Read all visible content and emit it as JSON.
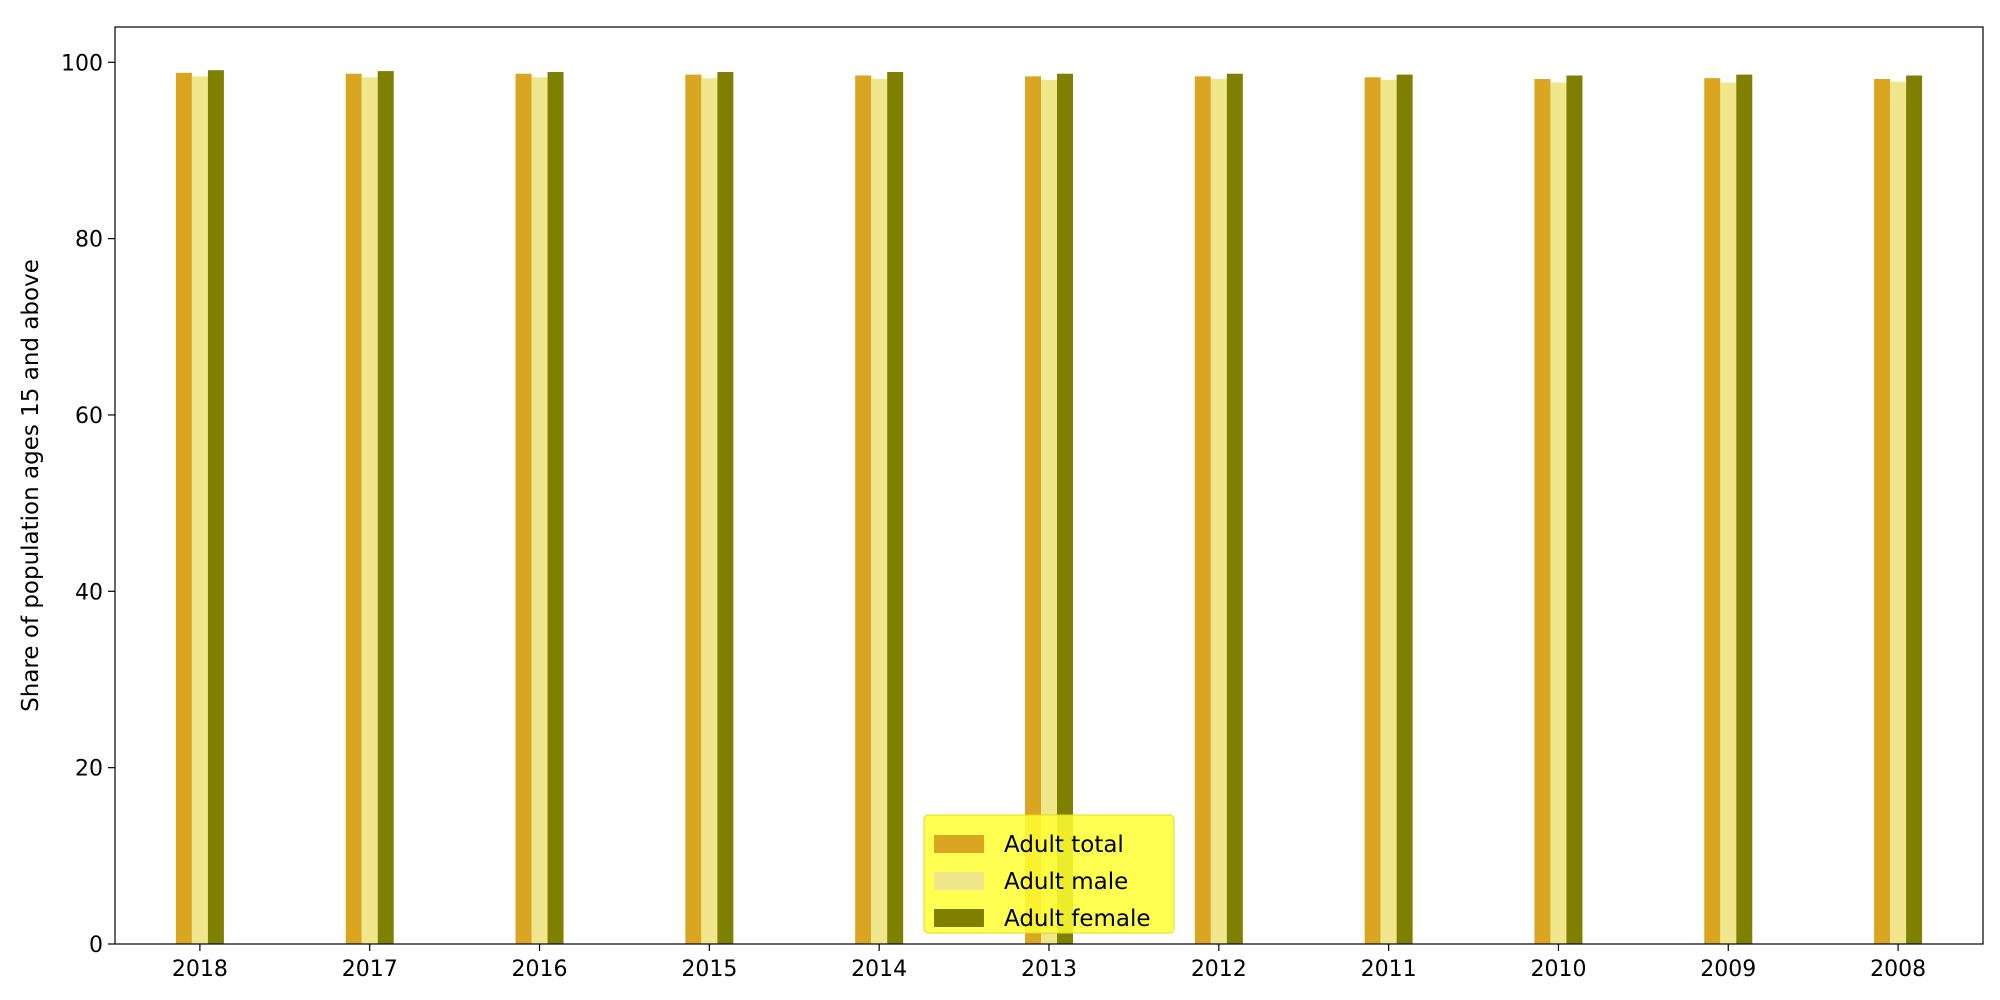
{
  "chart_data": {
    "type": "bar",
    "title": "",
    "xlabel": "",
    "ylabel": "Share of population ages 15 and above",
    "categories": [
      "2018",
      "2017",
      "2016",
      "2015",
      "2014",
      "2013",
      "2012",
      "2011",
      "2010",
      "2009",
      "2008"
    ],
    "series": [
      {
        "name": "Adult total",
        "color": "#daa520",
        "values": [
          98.8,
          98.7,
          98.7,
          98.6,
          98.5,
          98.4,
          98.4,
          98.3,
          98.1,
          98.2,
          98.1
        ]
      },
      {
        "name": "Adult male",
        "color": "#f0e68c",
        "values": [
          98.4,
          98.3,
          98.3,
          98.2,
          98.1,
          98.0,
          98.1,
          98.0,
          97.7,
          97.7,
          97.8
        ]
      },
      {
        "name": "Adult female",
        "color": "#808000",
        "values": [
          99.1,
          99.0,
          98.9,
          98.9,
          98.9,
          98.7,
          98.7,
          98.6,
          98.5,
          98.6,
          98.5
        ]
      }
    ],
    "ylim": [
      0,
      104
    ],
    "yticks": [
      0,
      20,
      40,
      60,
      80,
      100
    ],
    "grid": false,
    "legend": {
      "position": "bottom-center",
      "background": "#ffff33"
    }
  }
}
